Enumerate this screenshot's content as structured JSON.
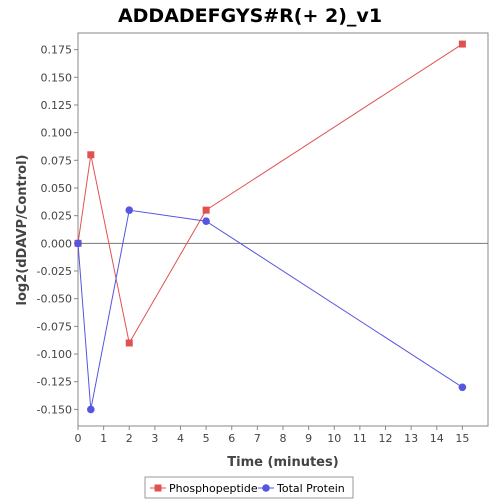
{
  "chart_data": {
    "type": "line",
    "title": "ADDADEFGYS#R(+ 2)_v1",
    "xlabel": "Time (minutes)",
    "ylabel": "log2(dDAVP/Control)",
    "xlim": [
      0,
      16
    ],
    "ylim": [
      -0.165,
      0.19
    ],
    "xticks": [
      0,
      1,
      2,
      3,
      4,
      5,
      6,
      7,
      8,
      9,
      10,
      11,
      12,
      13,
      14,
      15
    ],
    "yticks": [
      -0.15,
      -0.125,
      -0.1,
      -0.075,
      -0.05,
      -0.025,
      0.0,
      0.025,
      0.05,
      0.075,
      0.1,
      0.125,
      0.15,
      0.175
    ],
    "ytick_labels": [
      "-0.150",
      "-0.125",
      "-0.100",
      "-0.075",
      "-0.050",
      "-0.025",
      "0.000",
      "0.025",
      "0.050",
      "0.075",
      "0.100",
      "0.125",
      "0.150",
      "0.175"
    ],
    "grid": false,
    "zero_line": true,
    "legend_position": "bottom",
    "series": [
      {
        "name": "Phosphopeptide",
        "marker": "square",
        "color": "#e05252",
        "x": [
          0,
          0.5,
          2,
          5,
          15
        ],
        "y": [
          0.0,
          0.08,
          -0.09,
          0.03,
          0.18
        ]
      },
      {
        "name": "Total Protein",
        "marker": "circle",
        "color": "#5555e0",
        "x": [
          0,
          0.5,
          2,
          5,
          15
        ],
        "y": [
          0.0,
          -0.15,
          0.03,
          0.02,
          -0.13
        ]
      }
    ]
  }
}
